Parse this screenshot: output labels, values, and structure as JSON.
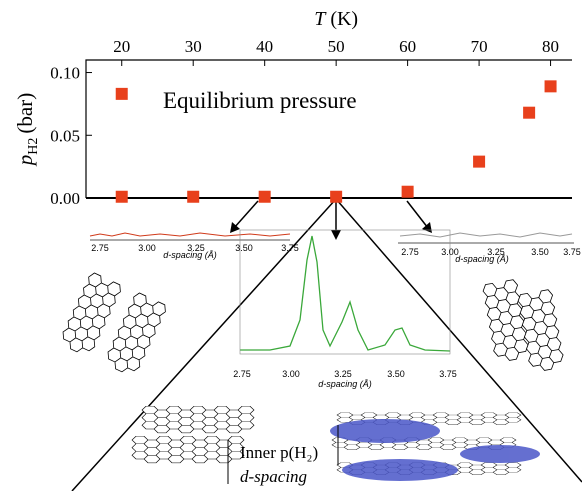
{
  "chart_data": {
    "type": "scatter",
    "x_label": {
      "var": "T",
      "unit": "(K)"
    },
    "y_label": {
      "var": "p",
      "sub": "H2",
      "unit": "(bar)"
    },
    "annotation": "Equilibrium pressure",
    "series": [
      {
        "name": "Equilibrium pressure",
        "color": "#e8401c",
        "x": [
          20,
          20,
          30,
          40,
          50,
          60,
          70,
          77,
          80
        ],
        "values": [
          0.083,
          0.001,
          0.001,
          0.001,
          0.001,
          0.005,
          0.029,
          0.068,
          0.089
        ]
      }
    ],
    "xlim": [
      15,
      83
    ],
    "xticks": [
      20,
      30,
      40,
      50,
      60,
      70,
      80
    ],
    "ylim": [
      0,
      0.11
    ],
    "yticks": [
      {
        "value": 0,
        "label": "0.00"
      },
      {
        "value": 0.05,
        "label": "0.05"
      },
      {
        "value": 0.1,
        "label": "0.10"
      }
    ]
  },
  "figure": {
    "insets": [
      {
        "ticks": [
          "2.75",
          "3.00",
          "3.25",
          "3.50",
          "3.75"
        ],
        "label": "d-spacing (Å)"
      },
      {
        "ticks": [
          "2.75",
          "3.00",
          "3.25",
          "3.50",
          "3.75"
        ],
        "label": "d-spacing (Å)"
      },
      {
        "ticks": [
          "2.75",
          "3.00",
          "3.25",
          "3.50",
          "3.75"
        ],
        "label": "d-spacing (Å)"
      }
    ],
    "inner_label": "Inner p(H₂)",
    "spacing_label": "d-spacing"
  }
}
